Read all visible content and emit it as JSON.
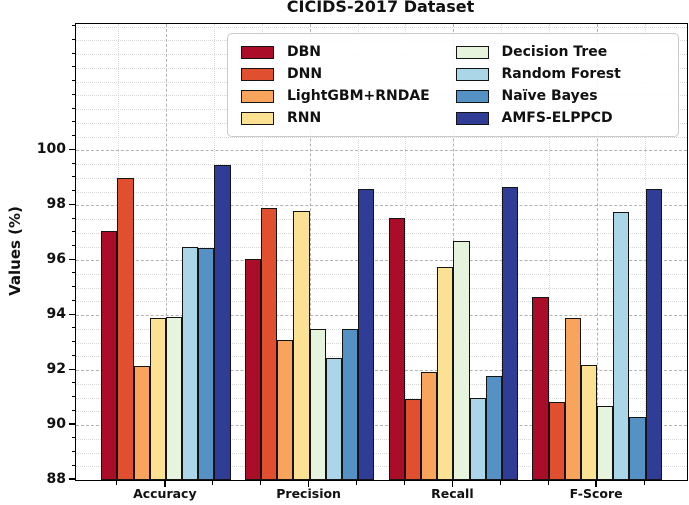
{
  "title": "CICIDS-2017 Dataset",
  "ylabel": "Values (%)",
  "colors": {
    "bar_edge": "#141414",
    "axis": "#000000",
    "grid_major": "#b2b2b2",
    "grid_minor": "#d9d9d9",
    "legend_border": "#cbcbcb"
  },
  "chart_data": {
    "type": "bar",
    "title": "CICIDS-2017 Dataset",
    "xlabel": "",
    "ylabel": "Values (%)",
    "categories": [
      "Accuracy",
      "Precision",
      "Recall",
      "F-Score"
    ],
    "series": [
      {
        "name": "DBN",
        "color": "#ab0c27",
        "values": [
          97.05,
          96.05,
          97.55,
          94.65
        ]
      },
      {
        "name": "DNN",
        "color": "#e04f2e",
        "values": [
          99.0,
          97.9,
          90.95,
          90.85
        ]
      },
      {
        "name": "LightGBM+RNDAE",
        "color": "#f9a45c",
        "values": [
          92.15,
          93.1,
          91.95,
          93.9
        ]
      },
      {
        "name": "RNN",
        "color": "#fbe191",
        "values": [
          93.9,
          97.8,
          95.75,
          92.2
        ]
      },
      {
        "name": "Decision Tree",
        "color": "#e7f4dd",
        "values": [
          93.95,
          93.5,
          96.7,
          90.7
        ]
      },
      {
        "name": "Random Forest",
        "color": "#abd6e8",
        "values": [
          96.5,
          92.45,
          91.0,
          97.75
        ]
      },
      {
        "name": "Naïve Bayes",
        "color": "#5492c6",
        "values": [
          96.45,
          93.5,
          91.8,
          90.3
        ]
      },
      {
        "name": "AMFS-ELPPCD",
        "color": "#2f3d96",
        "values": [
          99.45,
          98.6,
          98.65,
          98.6
        ]
      }
    ],
    "ylim": [
      88,
      104.6
    ],
    "yticks": [
      88,
      90,
      92,
      94,
      96,
      98,
      100
    ],
    "grid": "major dashed + minor dotted, both axes",
    "legend_position": "upper center, 2 columns, framed"
  }
}
